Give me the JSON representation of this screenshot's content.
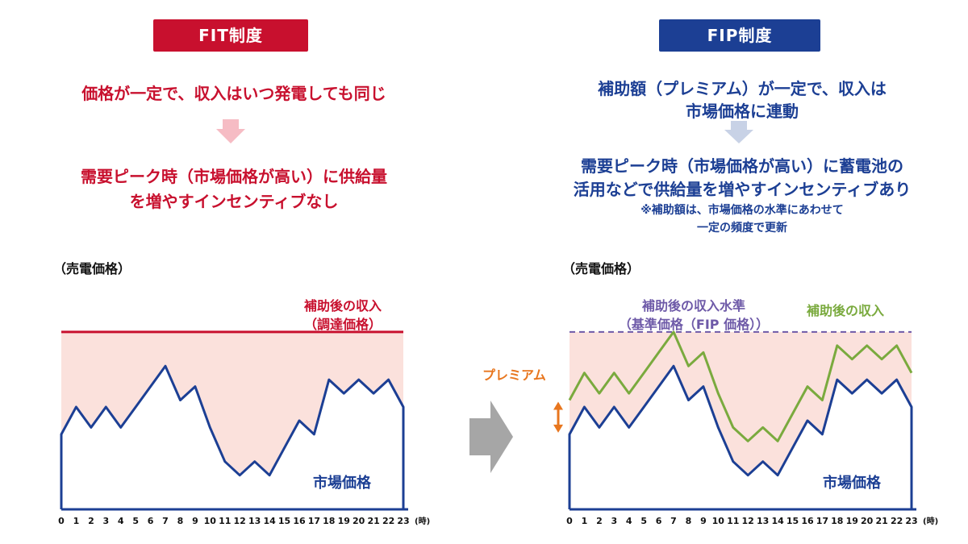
{
  "fit": {
    "badge": "FIT制度",
    "line1": "価格が一定で、収入はいつ発電しても同じ",
    "line2a": "需要ピーク時（市場価格が高い）に供給量",
    "line2b": "を増やすインセンティブなし",
    "axis_title": "（売電価格）",
    "income_label_a": "補助後の収入",
    "income_label_b": "（調達価格）",
    "market_label": "市場価格"
  },
  "fip": {
    "badge": "FIP制度",
    "line1a": "補助額（プレミアム）が一定で、収入は",
    "line1b": "市場価格に連動",
    "line2a": "需要ピーク時（市場価格が高い）に蓄電池の",
    "line2b": "活用などで供給量を増やすインセンティブあり",
    "note_a": "※補助額は、市場価格の水準にあわせて",
    "note_b": "一定の頻度で更新",
    "axis_title": "（売電価格）",
    "ref_label_a": "補助後の収入水準",
    "ref_label_b": "（基準価格（FIP 価格））",
    "income_label": "補助後の収入",
    "premium_label": "プレミアム",
    "market_label": "市場価格"
  },
  "x_unit": "(時)",
  "colors": {
    "fit_red": "#c8102e",
    "fip_blue": "#1c3f94",
    "market_line": "#1c3f94",
    "income_green": "#7aaa3e",
    "fill_pink": "#fbe1dc",
    "reference_dashed": "#6e5aa8",
    "premium_orange": "#e8761e",
    "arrow_gray": "#a6a6a6"
  },
  "chart_data": [
    {
      "type": "line",
      "panel": "FIT",
      "x": [
        0,
        1,
        2,
        3,
        4,
        5,
        6,
        7,
        8,
        9,
        10,
        11,
        12,
        13,
        14,
        15,
        16,
        17,
        18,
        19,
        20,
        21,
        22,
        23
      ],
      "series": [
        {
          "name": "市場価格",
          "values": [
            52,
            60,
            54,
            60,
            54,
            60,
            66,
            72,
            62,
            66,
            54,
            44,
            40,
            44,
            40,
            48,
            56,
            52,
            68,
            64,
            68,
            64,
            68,
            60
          ]
        },
        {
          "name": "補助後の収入",
          "values": [
            82,
            82,
            82,
            82,
            82,
            82,
            82,
            82,
            82,
            82,
            82,
            82,
            82,
            82,
            82,
            82,
            82,
            82,
            82,
            82,
            82,
            82,
            82,
            82
          ]
        }
      ],
      "ylim": [
        30,
        90
      ]
    },
    {
      "type": "line",
      "panel": "FIP",
      "x": [
        0,
        1,
        2,
        3,
        4,
        5,
        6,
        7,
        8,
        9,
        10,
        11,
        12,
        13,
        14,
        15,
        16,
        17,
        18,
        19,
        20,
        21,
        22,
        23
      ],
      "series": [
        {
          "name": "市場価格",
          "values": [
            52,
            60,
            54,
            60,
            54,
            60,
            66,
            72,
            62,
            66,
            54,
            44,
            40,
            44,
            40,
            48,
            56,
            52,
            68,
            64,
            68,
            64,
            68,
            60
          ]
        },
        {
          "name": "補助後の収入",
          "values": [
            62,
            70,
            64,
            70,
            64,
            70,
            76,
            82,
            72,
            76,
            64,
            54,
            50,
            54,
            50,
            58,
            66,
            62,
            78,
            74,
            78,
            74,
            78,
            70
          ]
        },
        {
          "name": "補助後の収入水準",
          "values": [
            82,
            82,
            82,
            82,
            82,
            82,
            82,
            82,
            82,
            82,
            82,
            82,
            82,
            82,
            82,
            82,
            82,
            82,
            82,
            82,
            82,
            82,
            82,
            82
          ]
        }
      ],
      "ylim": [
        30,
        90
      ]
    }
  ]
}
